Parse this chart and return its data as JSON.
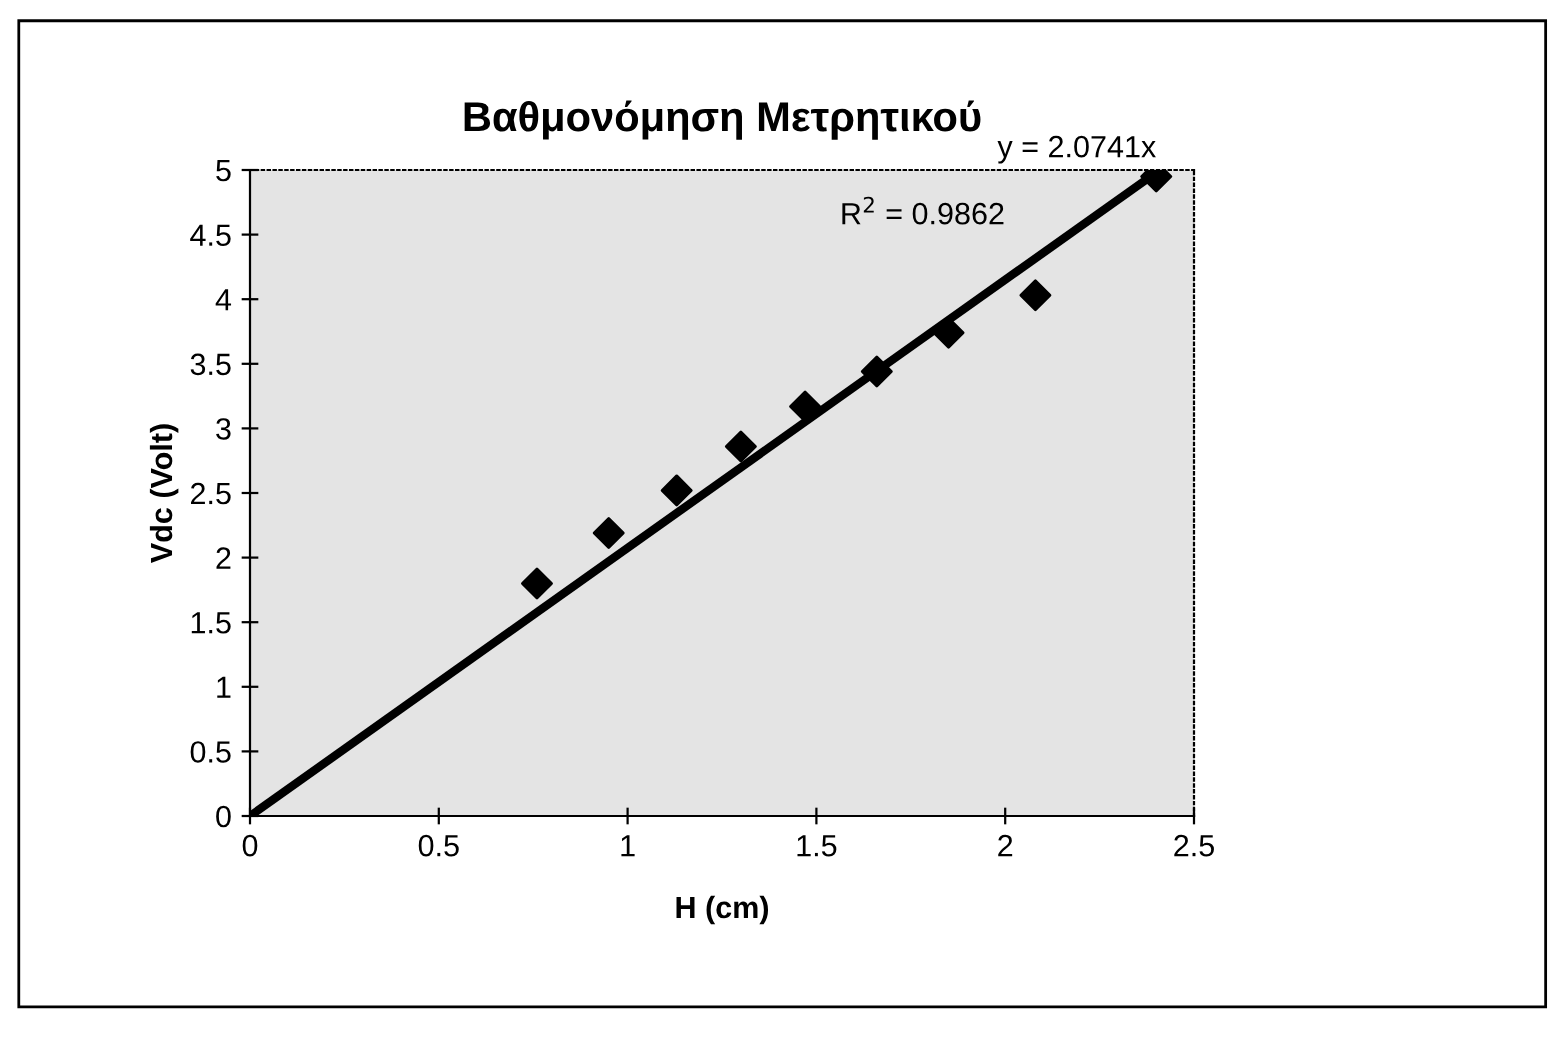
{
  "chart_data": {
    "type": "scatter",
    "title": "Βαθμονόμηση Μετρητικού",
    "xlabel": "H (cm)",
    "ylabel": "Vdc (Volt)",
    "annotations": [
      "y = 2.0741x",
      "R$^{2}$ = 0.9862"
    ],
    "xlim": [
      0,
      2.5
    ],
    "ylim": [
      0,
      5
    ],
    "xticks": [
      0,
      0.5,
      1,
      1.5,
      2,
      2.5
    ],
    "yticks": [
      0,
      0.5,
      1,
      1.5,
      2,
      2.5,
      3,
      3.5,
      4,
      4.5,
      5
    ],
    "grid": false,
    "legend": false,
    "series": [
      {
        "color": "#000000",
        "marker": "diamond",
        "x": [
          0.76,
          0.95,
          1.13,
          1.3,
          1.47,
          1.66,
          1.85,
          2.08,
          2.4
        ],
        "values": [
          1.8,
          2.19,
          2.52,
          2.86,
          3.17,
          3.44,
          3.74,
          4.03,
          4.95
        ]
      },
      {
        "type": "line",
        "color": "#000000",
        "line_style": "solid",
        "x": [
          0,
          2.4
        ],
        "values": [
          0,
          4.98
        ]
      }
    ]
  }
}
